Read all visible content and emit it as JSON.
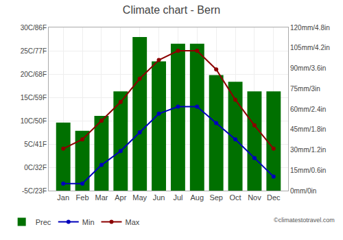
{
  "chart_data": {
    "type": "bar",
    "title": "Climate chart - Bern",
    "categories": [
      "Jan",
      "Feb",
      "Mar",
      "Apr",
      "May",
      "Jun",
      "Jul",
      "Aug",
      "Sep",
      "Oct",
      "Nov",
      "Dec"
    ],
    "series": [
      {
        "name": "Prec",
        "type": "bar",
        "axis": "y2",
        "color": "#007000",
        "values": [
          50,
          44,
          55,
          73,
          113,
          95,
          108,
          108,
          85,
          80,
          73,
          73
        ]
      },
      {
        "name": "Min",
        "type": "line",
        "color": "#0000bb",
        "marker": "circle",
        "values": [
          -3.5,
          -3.5,
          0.5,
          3.5,
          7.5,
          11.5,
          13,
          13,
          9.5,
          6,
          2,
          -2
        ]
      },
      {
        "name": "Max",
        "type": "line",
        "color": "#8b0000",
        "marker": "circle",
        "values": [
          4,
          6,
          10,
          14,
          19,
          23,
          25,
          25,
          21,
          14.5,
          9,
          4
        ]
      }
    ],
    "ylim": [
      -5,
      30
    ],
    "yticks": [
      {
        "value": -5,
        "label": "-5C/23F"
      },
      {
        "value": 0,
        "label": "0C/32F"
      },
      {
        "value": 5,
        "label": "5C/41F"
      },
      {
        "value": 10,
        "label": "10C/50F"
      },
      {
        "value": 15,
        "label": "15C/59F"
      },
      {
        "value": 20,
        "label": "20C/68F"
      },
      {
        "value": 25,
        "label": "25C/77F"
      },
      {
        "value": 30,
        "label": "30C/86F"
      }
    ],
    "y2lim": [
      0,
      120
    ],
    "y2ticks": [
      {
        "value": 0,
        "label": "0mm/0in"
      },
      {
        "value": 15,
        "label": "15mm/0.6in"
      },
      {
        "value": 30,
        "label": "30mm/1.2in"
      },
      {
        "value": 45,
        "label": "45mm/1.8in"
      },
      {
        "value": 60,
        "label": "60mm/2.4in"
      },
      {
        "value": 75,
        "label": "75mm/3in"
      },
      {
        "value": 90,
        "label": "90mm/3.6in"
      },
      {
        "value": 105,
        "label": "105mm/4.2in"
      },
      {
        "value": 120,
        "label": "120mm/4.8in"
      }
    ],
    "grid": true,
    "legend": "bottom left",
    "annotations": [
      "©climatestotravel.com"
    ]
  }
}
